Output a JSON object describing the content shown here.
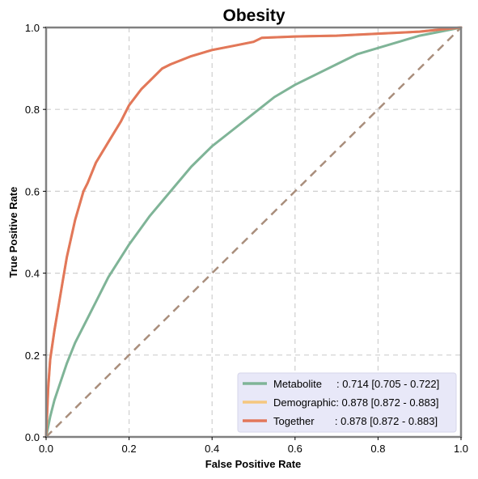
{
  "chart_data": {
    "type": "line",
    "title": "Obesity",
    "xlabel": "False Positive Rate",
    "ylabel": "True Positive Rate",
    "xlim": [
      0,
      1
    ],
    "ylim": [
      0,
      1
    ],
    "xticks": [
      "0.0",
      "0.2",
      "0.4",
      "0.6",
      "0.8",
      "1.0"
    ],
    "yticks": [
      "0.0",
      "0.2",
      "0.4",
      "0.6",
      "0.8",
      "1.0"
    ],
    "grid": true,
    "legend_position": "bottom-right",
    "series": [
      {
        "name": "Metabolite",
        "legend_text": "Metabolite     : 0.714 [0.705 - 0.722]",
        "color": "#7fb497",
        "x": [
          0,
          0.01,
          0.02,
          0.03,
          0.05,
          0.07,
          0.1,
          0.12,
          0.15,
          0.2,
          0.25,
          0.3,
          0.35,
          0.4,
          0.45,
          0.5,
          0.55,
          0.6,
          0.65,
          0.7,
          0.75,
          0.8,
          0.85,
          0.9,
          0.95,
          1.0
        ],
        "y": [
          0,
          0.05,
          0.09,
          0.12,
          0.18,
          0.23,
          0.29,
          0.33,
          0.39,
          0.47,
          0.54,
          0.6,
          0.66,
          0.71,
          0.75,
          0.79,
          0.83,
          0.86,
          0.885,
          0.91,
          0.935,
          0.95,
          0.965,
          0.98,
          0.99,
          1.0
        ]
      },
      {
        "name": "Demographic",
        "legend_text": "Demographic: 0.878 [0.872 - 0.883]",
        "color": "#f5c77e",
        "x": [
          0,
          0.005,
          0.01,
          0.02,
          0.03,
          0.04,
          0.05,
          0.07,
          0.09,
          0.1,
          0.12,
          0.15,
          0.18,
          0.2,
          0.23,
          0.25,
          0.28,
          0.3,
          0.35,
          0.4,
          0.45,
          0.5,
          0.52,
          0.6,
          0.7,
          0.8,
          0.9,
          0.95,
          1.0
        ],
        "y": [
          0,
          0.12,
          0.19,
          0.26,
          0.32,
          0.38,
          0.44,
          0.53,
          0.6,
          0.62,
          0.67,
          0.72,
          0.77,
          0.81,
          0.85,
          0.87,
          0.9,
          0.91,
          0.93,
          0.945,
          0.955,
          0.965,
          0.975,
          0.978,
          0.98,
          0.985,
          0.99,
          0.995,
          1.0
        ]
      },
      {
        "name": "Together",
        "legend_text": "Together       : 0.878 [0.872 - 0.883]",
        "color": "#e2775a",
        "x": [
          0,
          0.005,
          0.01,
          0.02,
          0.03,
          0.04,
          0.05,
          0.07,
          0.09,
          0.1,
          0.12,
          0.15,
          0.18,
          0.2,
          0.23,
          0.25,
          0.28,
          0.3,
          0.35,
          0.4,
          0.45,
          0.5,
          0.52,
          0.6,
          0.7,
          0.8,
          0.9,
          0.95,
          1.0
        ],
        "y": [
          0,
          0.12,
          0.19,
          0.26,
          0.32,
          0.38,
          0.44,
          0.53,
          0.6,
          0.62,
          0.67,
          0.72,
          0.77,
          0.81,
          0.85,
          0.87,
          0.9,
          0.91,
          0.93,
          0.945,
          0.955,
          0.965,
          0.975,
          0.978,
          0.98,
          0.985,
          0.99,
          0.995,
          1.0
        ]
      }
    ],
    "reference_line": {
      "color": "#a98e7c",
      "x": [
        0,
        1
      ],
      "y": [
        0,
        1
      ]
    }
  }
}
